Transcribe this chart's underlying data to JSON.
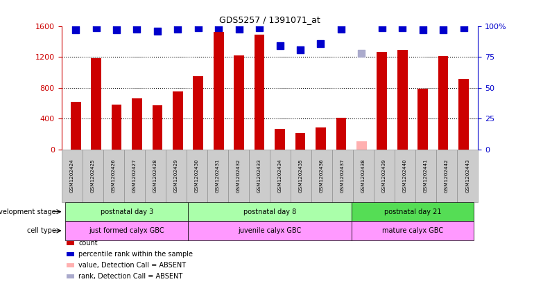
{
  "title": "GDS5257 / 1391071_at",
  "samples": [
    "GSM1202424",
    "GSM1202425",
    "GSM1202426",
    "GSM1202427",
    "GSM1202428",
    "GSM1202429",
    "GSM1202430",
    "GSM1202431",
    "GSM1202432",
    "GSM1202433",
    "GSM1202434",
    "GSM1202435",
    "GSM1202436",
    "GSM1202437",
    "GSM1202438",
    "GSM1202439",
    "GSM1202440",
    "GSM1202441",
    "GSM1202442",
    "GSM1202443"
  ],
  "counts": [
    620,
    1190,
    580,
    660,
    575,
    750,
    950,
    1530,
    1220,
    1490,
    265,
    210,
    290,
    415,
    110,
    1270,
    1290,
    790,
    1210,
    920
  ],
  "absent_count_idx": [
    14
  ],
  "absent_count_val": [
    110
  ],
  "percentile_ranks": [
    97,
    99,
    97,
    98,
    96,
    98,
    99,
    99,
    98,
    99,
    84,
    81,
    86,
    98,
    null,
    99,
    99,
    97,
    97,
    99
  ],
  "absent_rank_idx": [
    14
  ],
  "absent_rank_val": [
    78
  ],
  "ylim_left": [
    0,
    1600
  ],
  "ylim_right": [
    0,
    100
  ],
  "yticks_left": [
    0,
    400,
    800,
    1200,
    1600
  ],
  "yticks_right": [
    0,
    25,
    50,
    75,
    100
  ],
  "yticklabels_right": [
    "0",
    "25",
    "50",
    "75",
    "100%"
  ],
  "bar_color": "#cc0000",
  "absent_bar_color": "#ffb0b0",
  "dot_color": "#0000cc",
  "absent_dot_color": "#aaaacc",
  "groups_dev": [
    {
      "label": "postnatal day 3",
      "start": 0,
      "end": 5,
      "color": "#aaffaa"
    },
    {
      "label": "postnatal day 8",
      "start": 6,
      "end": 13,
      "color": "#aaffaa"
    },
    {
      "label": "postnatal day 21",
      "start": 14,
      "end": 19,
      "color": "#55dd55"
    }
  ],
  "groups_cell": [
    {
      "label": "just formed calyx GBC",
      "start": 0,
      "end": 5,
      "color": "#ff99ff"
    },
    {
      "label": "juvenile calyx GBC",
      "start": 6,
      "end": 13,
      "color": "#ff99ff"
    },
    {
      "label": "mature calyx GBC",
      "start": 14,
      "end": 19,
      "color": "#ff99ff"
    }
  ],
  "dev_stage_label": "development stage",
  "cell_type_label": "cell type",
  "legend_items": [
    {
      "label": "count",
      "color": "#cc0000"
    },
    {
      "label": "percentile rank within the sample",
      "color": "#0000cc"
    },
    {
      "label": "value, Detection Call = ABSENT",
      "color": "#ffb0b0"
    },
    {
      "label": "rank, Detection Call = ABSENT",
      "color": "#aaaacc"
    }
  ],
  "background_color": "#ffffff",
  "tick_color_left": "#cc0000",
  "tick_color_right": "#0000cc",
  "bar_width": 0.5,
  "dot_size": 45,
  "dot_marker": "s",
  "xlabel_color": "#444444",
  "xtick_bg": "#cccccc"
}
